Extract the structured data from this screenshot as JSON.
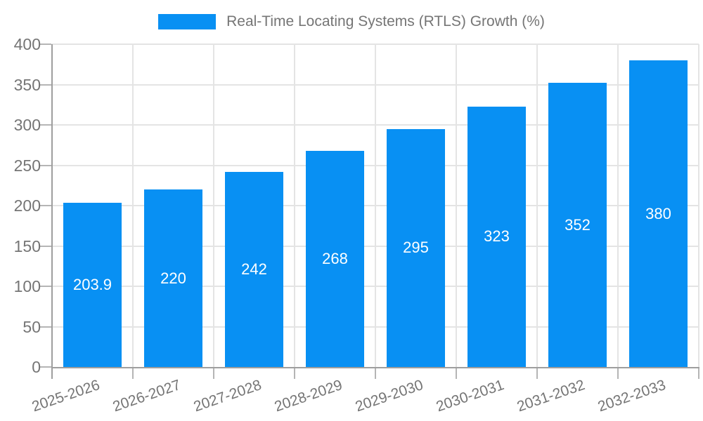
{
  "chart_data": {
    "type": "bar",
    "title": "Real-Time Locating Systems (RTLS) Growth (%)",
    "categories": [
      "2025-2026",
      "2026-2027",
      "2027-2028",
      "2028-2029",
      "2029-2030",
      "2030-2031",
      "2031-2032",
      "2032-2033"
    ],
    "values": [
      203.9,
      220,
      242,
      268,
      295,
      323,
      352,
      380
    ],
    "value_labels": [
      "203.9",
      "220",
      "242",
      "268",
      "295",
      "323",
      "352",
      "380"
    ],
    "yticks": [
      0,
      50,
      100,
      150,
      200,
      250,
      300,
      350,
      400
    ],
    "ylim": [
      0,
      400
    ],
    "xlabel": "",
    "ylabel": "",
    "grid": true,
    "legend_position": "top",
    "colors": {
      "bar": "#0890f3",
      "value_text": "#ffffff",
      "axis_line": "#9e9e9e",
      "gridline": "#e4e4e4",
      "tick_mark": "#b5b5b5",
      "label_text": "#757575"
    }
  }
}
